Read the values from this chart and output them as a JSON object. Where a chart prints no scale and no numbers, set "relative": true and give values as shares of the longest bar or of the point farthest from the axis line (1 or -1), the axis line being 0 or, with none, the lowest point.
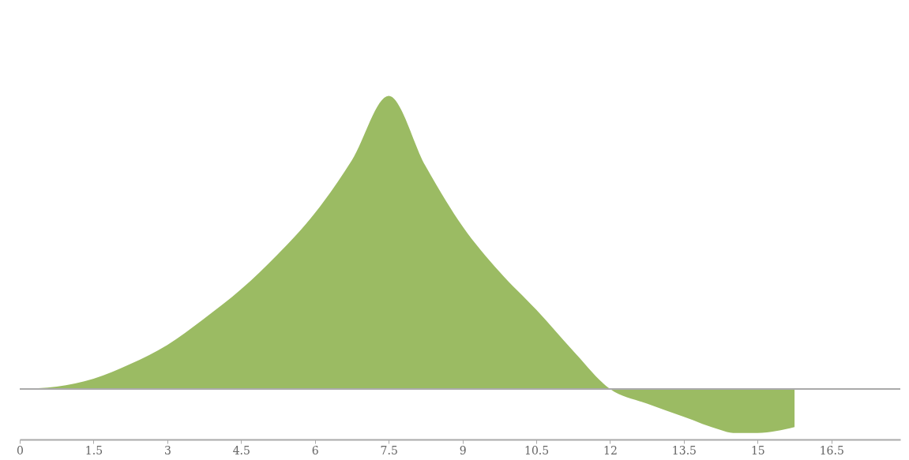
{
  "chart_data": {
    "type": "area",
    "relative": true,
    "x": [
      0,
      0.75,
      1.5,
      2.25,
      3,
      3.75,
      4.5,
      5.25,
      6,
      6.75,
      7.5,
      8.25,
      9,
      9.75,
      10.5,
      11.25,
      12,
      12.75,
      13.5,
      14.25,
      14.5,
      15,
      15.75
    ],
    "series": [
      {
        "color": "#9bbb63",
        "values": [
          0,
          0.008,
          0.035,
          0.085,
          0.15,
          0.24,
          0.34,
          0.46,
          0.6,
          0.78,
          1,
          0.76,
          0.555,
          0.4,
          0.27,
          0.13,
          0,
          -0.05,
          -0.095,
          -0.14,
          -0.15,
          -0.15,
          -0.13
        ]
      }
    ],
    "xlim": [
      0,
      17.9
    ],
    "xticks": [
      0,
      1.5,
      3,
      4.5,
      6,
      7.5,
      9,
      10.5,
      12,
      13.5,
      15,
      16.5
    ],
    "grid": false
  }
}
